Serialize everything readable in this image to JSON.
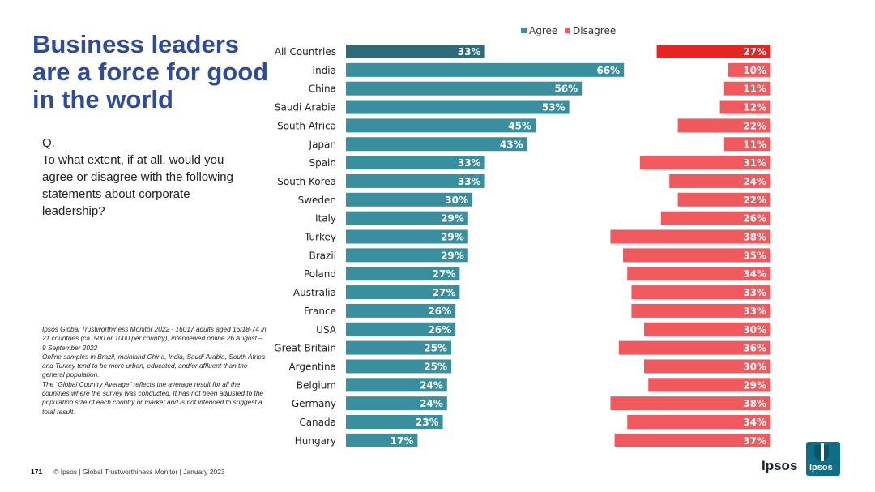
{
  "title": "Business leaders are a force for good in the world",
  "question": {
    "label": "Q.",
    "text": "To what extent, if at all, would you agree or disagree with the following statements about corporate leadership?"
  },
  "notes": [
    "Ipsos Global Trustworthiness Monitor 2022 - 16017 adults aged 16/18-74 in 21 countries (ca. 500 or 1000 per country), interviewed online 26 August – 9 September 2022",
    "Online samples in Brazil, mainland China, India, Saudi Arabia, South Africa and Turkey tend to be more urban, educated, and/or affluent than the general population.",
    "The “Global Country Average” reflects the average result for all the countries where the survey was conducted. It has not been adjusted to the population size of each country or market and is not intended to suggest a total result."
  ],
  "footer": {
    "page_number": "171",
    "text": "© Ipsos | Global Trustworthiness Monitor | January 2023"
  },
  "logo": {
    "word": "Ipsos",
    "box_text": "Ipsos"
  },
  "colors": {
    "agree": "#3a8f9e",
    "agree_total": "#2d6b78",
    "disagree": "#f05a5e",
    "disagree_total": "#e42523",
    "title": "#2e4a9e"
  },
  "chart_data": {
    "type": "bar",
    "orientation": "horizontal",
    "legend": [
      "Agree",
      "Disagree"
    ],
    "legend_position": "top-right",
    "unit": "%",
    "categories": [
      "All Countries",
      "India",
      "China",
      "Saudi Arabia",
      "South Africa",
      "Japan",
      "Spain",
      "South Korea",
      "Sweden",
      "Italy",
      "Turkey",
      "Brazil",
      "Poland",
      "Australia",
      "France",
      "USA",
      "Great Britain",
      "Argentina",
      "Belgium",
      "Germany",
      "Canada",
      "Hungary"
    ],
    "series": [
      {
        "name": "Agree",
        "values": [
          33,
          66,
          56,
          53,
          45,
          43,
          33,
          33,
          30,
          29,
          29,
          29,
          27,
          27,
          26,
          26,
          25,
          25,
          24,
          24,
          23,
          17
        ]
      },
      {
        "name": "Disagree",
        "values": [
          27,
          10,
          11,
          12,
          22,
          11,
          31,
          24,
          22,
          26,
          38,
          35,
          34,
          33,
          33,
          30,
          36,
          30,
          29,
          38,
          34,
          37
        ]
      }
    ]
  }
}
